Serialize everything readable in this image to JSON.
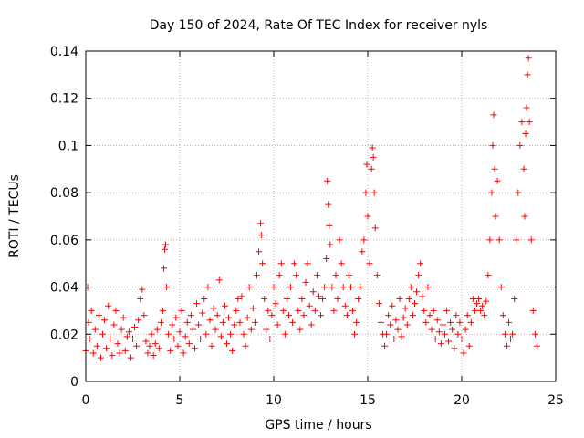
{
  "chart_data": {
    "type": "scatter",
    "title": "Day 150 of 2024, Rate Of TEC Index for receiver nyls",
    "xlabel": "GPS time / hours",
    "ylabel": "ROTI / TECUs",
    "xlim": [
      0,
      25
    ],
    "ylim": [
      0,
      0.14
    ],
    "xticks": [
      0,
      5,
      10,
      15,
      20,
      25
    ],
    "xtick_labels": [
      "0",
      "5",
      "10",
      "15",
      "20",
      "25"
    ],
    "yticks": [
      0,
      0.02,
      0.04,
      0.06,
      0.08,
      0.1,
      0.12,
      0.14
    ],
    "ytick_labels": [
      "0",
      "0.02",
      "0.04",
      "0.06",
      "0.08",
      "0.1",
      "0.12",
      "0.14"
    ],
    "grid": true,
    "marker": "+",
    "series_color": "#ff0000",
    "series": [
      {
        "points": [
          [
            0.0,
            0.013
          ],
          [
            0.1,
            0.04
          ],
          [
            0.15,
            0.025
          ],
          [
            0.2,
            0.018
          ],
          [
            0.3,
            0.03
          ],
          [
            0.4,
            0.012
          ],
          [
            0.5,
            0.022
          ],
          [
            0.6,
            0.015
          ],
          [
            0.7,
            0.028
          ],
          [
            0.8,
            0.01
          ],
          [
            0.9,
            0.02
          ],
          [
            1.0,
            0.026
          ],
          [
            1.1,
            0.014
          ],
          [
            1.2,
            0.032
          ],
          [
            1.3,
            0.018
          ],
          [
            1.4,
            0.011
          ],
          [
            1.5,
            0.024
          ],
          [
            1.6,
            0.03
          ],
          [
            1.7,
            0.016
          ],
          [
            1.8,
            0.012
          ],
          [
            1.9,
            0.022
          ],
          [
            2.0,
            0.027
          ],
          [
            2.1,
            0.013
          ],
          [
            2.2,
            0.019
          ],
          [
            2.3,
            0.021
          ],
          [
            2.4,
            0.01
          ],
          [
            2.5,
            0.018
          ],
          [
            2.6,
            0.023
          ],
          [
            2.7,
            0.015
          ],
          [
            2.8,
            0.026
          ],
          [
            2.9,
            0.035
          ],
          [
            3.0,
            0.039
          ],
          [
            3.1,
            0.028
          ],
          [
            3.2,
            0.017
          ],
          [
            3.3,
            0.012
          ],
          [
            3.4,
            0.015
          ],
          [
            3.5,
            0.02
          ],
          [
            3.6,
            0.011
          ],
          [
            3.7,
            0.016
          ],
          [
            3.8,
            0.022
          ],
          [
            3.9,
            0.014
          ],
          [
            4.0,
            0.025
          ],
          [
            4.1,
            0.03
          ],
          [
            4.15,
            0.048
          ],
          [
            4.2,
            0.056
          ],
          [
            4.25,
            0.058
          ],
          [
            4.3,
            0.04
          ],
          [
            4.4,
            0.02
          ],
          [
            4.5,
            0.013
          ],
          [
            4.6,
            0.024
          ],
          [
            4.7,
            0.018
          ],
          [
            4.8,
            0.027
          ],
          [
            4.9,
            0.015
          ],
          [
            5.0,
            0.021
          ],
          [
            5.1,
            0.03
          ],
          [
            5.2,
            0.012
          ],
          [
            5.3,
            0.019
          ],
          [
            5.4,
            0.025
          ],
          [
            5.5,
            0.016
          ],
          [
            5.6,
            0.028
          ],
          [
            5.7,
            0.022
          ],
          [
            5.8,
            0.014
          ],
          [
            5.9,
            0.033
          ],
          [
            6.0,
            0.024
          ],
          [
            6.1,
            0.018
          ],
          [
            6.2,
            0.029
          ],
          [
            6.3,
            0.035
          ],
          [
            6.4,
            0.02
          ],
          [
            6.5,
            0.04
          ],
          [
            6.6,
            0.026
          ],
          [
            6.7,
            0.015
          ],
          [
            6.8,
            0.031
          ],
          [
            6.9,
            0.022
          ],
          [
            7.0,
            0.028
          ],
          [
            7.1,
            0.043
          ],
          [
            7.2,
            0.019
          ],
          [
            7.3,
            0.025
          ],
          [
            7.4,
            0.032
          ],
          [
            7.5,
            0.016
          ],
          [
            7.6,
            0.027
          ],
          [
            7.7,
            0.02
          ],
          [
            7.8,
            0.013
          ],
          [
            7.9,
            0.024
          ],
          [
            8.0,
            0.03
          ],
          [
            8.1,
            0.035
          ],
          [
            8.2,
            0.025
          ],
          [
            8.3,
            0.036
          ],
          [
            8.4,
            0.02
          ],
          [
            8.5,
            0.015
          ],
          [
            8.6,
            0.027
          ],
          [
            8.7,
            0.04
          ],
          [
            8.8,
            0.022
          ],
          [
            8.9,
            0.031
          ],
          [
            9.0,
            0.025
          ],
          [
            9.1,
            0.045
          ],
          [
            9.2,
            0.055
          ],
          [
            9.3,
            0.067
          ],
          [
            9.35,
            0.062
          ],
          [
            9.4,
            0.05
          ],
          [
            9.5,
            0.035
          ],
          [
            9.6,
            0.022
          ],
          [
            9.7,
            0.03
          ],
          [
            9.8,
            0.018
          ],
          [
            9.9,
            0.028
          ],
          [
            10.0,
            0.04
          ],
          [
            10.1,
            0.033
          ],
          [
            10.2,
            0.024
          ],
          [
            10.3,
            0.045
          ],
          [
            10.4,
            0.05
          ],
          [
            10.5,
            0.03
          ],
          [
            10.6,
            0.02
          ],
          [
            10.7,
            0.035
          ],
          [
            10.8,
            0.028
          ],
          [
            10.9,
            0.04
          ],
          [
            11.0,
            0.025
          ],
          [
            11.1,
            0.05
          ],
          [
            11.2,
            0.045
          ],
          [
            11.3,
            0.03
          ],
          [
            11.4,
            0.022
          ],
          [
            11.5,
            0.035
          ],
          [
            11.6,
            0.028
          ],
          [
            11.7,
            0.042
          ],
          [
            11.8,
            0.05
          ],
          [
            11.9,
            0.032
          ],
          [
            12.0,
            0.024
          ],
          [
            12.1,
            0.038
          ],
          [
            12.2,
            0.03
          ],
          [
            12.3,
            0.045
          ],
          [
            12.4,
            0.036
          ],
          [
            12.5,
            0.028
          ],
          [
            12.6,
            0.035
          ],
          [
            12.7,
            0.04
          ],
          [
            12.8,
            0.052
          ],
          [
            12.85,
            0.085
          ],
          [
            12.9,
            0.075
          ],
          [
            12.95,
            0.066
          ],
          [
            13.0,
            0.058
          ],
          [
            13.1,
            0.04
          ],
          [
            13.2,
            0.03
          ],
          [
            13.3,
            0.045
          ],
          [
            13.4,
            0.035
          ],
          [
            13.5,
            0.06
          ],
          [
            13.6,
            0.05
          ],
          [
            13.7,
            0.04
          ],
          [
            13.8,
            0.032
          ],
          [
            13.9,
            0.028
          ],
          [
            14.0,
            0.045
          ],
          [
            14.1,
            0.04
          ],
          [
            14.2,
            0.03
          ],
          [
            14.3,
            0.02
          ],
          [
            14.4,
            0.025
          ],
          [
            14.5,
            0.035
          ],
          [
            14.6,
            0.04
          ],
          [
            14.7,
            0.055
          ],
          [
            14.8,
            0.06
          ],
          [
            14.9,
            0.08
          ],
          [
            14.95,
            0.092
          ],
          [
            15.0,
            0.07
          ],
          [
            15.1,
            0.05
          ],
          [
            15.2,
            0.09
          ],
          [
            15.25,
            0.099
          ],
          [
            15.3,
            0.095
          ],
          [
            15.35,
            0.08
          ],
          [
            15.4,
            0.065
          ],
          [
            15.5,
            0.045
          ],
          [
            15.6,
            0.033
          ],
          [
            15.7,
            0.025
          ],
          [
            15.8,
            0.02
          ],
          [
            15.9,
            0.015
          ],
          [
            16.0,
            0.02
          ],
          [
            16.1,
            0.028
          ],
          [
            16.2,
            0.024
          ],
          [
            16.3,
            0.032
          ],
          [
            16.4,
            0.018
          ],
          [
            16.5,
            0.026
          ],
          [
            16.6,
            0.022
          ],
          [
            16.7,
            0.035
          ],
          [
            16.8,
            0.019
          ],
          [
            16.9,
            0.027
          ],
          [
            17.0,
            0.031
          ],
          [
            17.1,
            0.024
          ],
          [
            17.2,
            0.035
          ],
          [
            17.3,
            0.04
          ],
          [
            17.4,
            0.028
          ],
          [
            17.5,
            0.033
          ],
          [
            17.6,
            0.038
          ],
          [
            17.7,
            0.045
          ],
          [
            17.8,
            0.05
          ],
          [
            17.9,
            0.036
          ],
          [
            18.0,
            0.03
          ],
          [
            18.1,
            0.025
          ],
          [
            18.2,
            0.04
          ],
          [
            18.3,
            0.028
          ],
          [
            18.4,
            0.022
          ],
          [
            18.5,
            0.03
          ],
          [
            18.6,
            0.018
          ],
          [
            18.7,
            0.026
          ],
          [
            18.8,
            0.021
          ],
          [
            18.9,
            0.016
          ],
          [
            19.0,
            0.024
          ],
          [
            19.1,
            0.02
          ],
          [
            19.2,
            0.03
          ],
          [
            19.3,
            0.017
          ],
          [
            19.4,
            0.025
          ],
          [
            19.5,
            0.022
          ],
          [
            19.6,
            0.014
          ],
          [
            19.7,
            0.028
          ],
          [
            19.8,
            0.02
          ],
          [
            19.9,
            0.025
          ],
          [
            20.0,
            0.018
          ],
          [
            20.1,
            0.012
          ],
          [
            20.2,
            0.022
          ],
          [
            20.3,
            0.028
          ],
          [
            20.4,
            0.015
          ],
          [
            20.5,
            0.025
          ],
          [
            20.6,
            0.035
          ],
          [
            20.7,
            0.03
          ],
          [
            20.8,
            0.033
          ],
          [
            20.9,
            0.035
          ],
          [
            21.0,
            0.03
          ],
          [
            21.1,
            0.032
          ],
          [
            21.2,
            0.028
          ],
          [
            21.3,
            0.034
          ],
          [
            21.4,
            0.045
          ],
          [
            21.5,
            0.06
          ],
          [
            21.6,
            0.08
          ],
          [
            21.65,
            0.1
          ],
          [
            21.7,
            0.113
          ],
          [
            21.75,
            0.09
          ],
          [
            21.8,
            0.07
          ],
          [
            21.9,
            0.085
          ],
          [
            22.0,
            0.06
          ],
          [
            22.1,
            0.04
          ],
          [
            22.2,
            0.028
          ],
          [
            22.3,
            0.02
          ],
          [
            22.4,
            0.015
          ],
          [
            22.5,
            0.025
          ],
          [
            22.6,
            0.018
          ],
          [
            22.7,
            0.02
          ],
          [
            22.8,
            0.035
          ],
          [
            22.9,
            0.06
          ],
          [
            23.0,
            0.08
          ],
          [
            23.1,
            0.1
          ],
          [
            23.2,
            0.11
          ],
          [
            23.3,
            0.09
          ],
          [
            23.35,
            0.07
          ],
          [
            23.4,
            0.105
          ],
          [
            23.45,
            0.116
          ],
          [
            23.5,
            0.13
          ],
          [
            23.55,
            0.137
          ],
          [
            23.6,
            0.11
          ],
          [
            23.7,
            0.06
          ],
          [
            23.8,
            0.03
          ],
          [
            23.9,
            0.02
          ],
          [
            24.0,
            0.015
          ]
        ]
      }
    ]
  }
}
